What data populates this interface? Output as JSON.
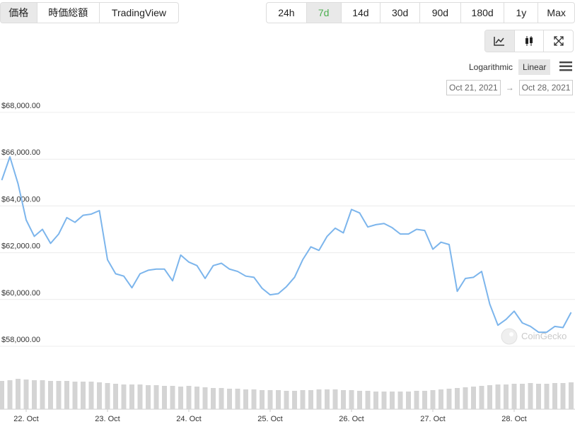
{
  "tabs": {
    "left": [
      "価格",
      "時価総額",
      "TradingView"
    ],
    "left_selected": 0,
    "right": [
      "24h",
      "7d",
      "14d",
      "30d",
      "90d",
      "180d",
      "1y",
      "Max"
    ],
    "right_selected": 1
  },
  "scale_options": [
    "Logarithmic",
    "Linear"
  ],
  "scale_selected": 1,
  "date_range": {
    "from": "Oct 21, 2021",
    "separator": "→",
    "to": "Oct 28, 2021"
  },
  "watermark": "CoinGecko",
  "chart_data": {
    "type": "line",
    "color": "#7cb5ec",
    "grid": true,
    "x": [
      21.7,
      21.8,
      21.9,
      22.0,
      22.1,
      22.2,
      22.3,
      22.4,
      22.5,
      22.6,
      22.7,
      22.8,
      22.9,
      23.0,
      23.1,
      23.2,
      23.3,
      23.4,
      23.5,
      23.6,
      23.7,
      23.8,
      23.9,
      24.0,
      24.1,
      24.2,
      24.3,
      24.4,
      24.5,
      24.6,
      24.7,
      24.8,
      24.9,
      25.0,
      25.1,
      25.2,
      25.3,
      25.4,
      25.5,
      25.6,
      25.7,
      25.8,
      25.9,
      26.0,
      26.1,
      26.2,
      26.3,
      26.4,
      26.5,
      26.6,
      26.7,
      26.8,
      26.9,
      27.0,
      27.1,
      27.2,
      27.3,
      27.4,
      27.5,
      27.6,
      27.7,
      27.8,
      27.9,
      28.0,
      28.1,
      28.2,
      28.3,
      28.4,
      28.5,
      28.6,
      28.7
    ],
    "series": [
      {
        "values": [
          65100,
          66100,
          64950,
          63400,
          62700,
          63000,
          62400,
          62800,
          63500,
          63300,
          63600,
          63650,
          63800,
          61700,
          61100,
          61000,
          60500,
          61100,
          61250,
          61300,
          61300,
          60800,
          61900,
          61600,
          61450,
          60900,
          61450,
          61550,
          61300,
          61200,
          61000,
          60950,
          60480,
          60200,
          60250,
          60550,
          60950,
          61700,
          62250,
          62100,
          62700,
          63050,
          62850,
          63850,
          63700,
          63100,
          63200,
          63250,
          63070,
          62800,
          62800,
          63000,
          62950,
          62150,
          62450,
          62350,
          60350,
          60900,
          60950,
          61200,
          59800,
          58900,
          59150,
          59500,
          59000,
          58850,
          58600,
          58600,
          58850,
          58800,
          59450
        ]
      }
    ],
    "volume": {
      "color": "#d4d4d4",
      "values": [
        40,
        41,
        43,
        42,
        41,
        41,
        40,
        40,
        40,
        39,
        39,
        39,
        38,
        37,
        36,
        35,
        35,
        35,
        34,
        34,
        33,
        33,
        32,
        33,
        32,
        31,
        30,
        30,
        29,
        29,
        28,
        28,
        27,
        27,
        27,
        26,
        26,
        27,
        27,
        28,
        28,
        28,
        27,
        27,
        26,
        26,
        25,
        25,
        25,
        25,
        25,
        26,
        26,
        27,
        28,
        29,
        30,
        31,
        32,
        33,
        34,
        35,
        35,
        36,
        36,
        37,
        36,
        36,
        37,
        37,
        38
      ]
    },
    "xlim": [
      21.7,
      28.7
    ],
    "xticks": [
      {
        "value": 22,
        "label": "22. Oct"
      },
      {
        "value": 23,
        "label": "23. Oct"
      },
      {
        "value": 24,
        "label": "24. Oct"
      },
      {
        "value": 25,
        "label": "25. Oct"
      },
      {
        "value": 26,
        "label": "26. Oct"
      },
      {
        "value": 27,
        "label": "27. Oct"
      },
      {
        "value": 28,
        "label": "28. Oct"
      }
    ],
    "ylim": [
      57800,
      68300
    ],
    "yticks": [
      {
        "value": 58000,
        "label": "$58,000.00"
      },
      {
        "value": 60000,
        "label": "$60,000.00"
      },
      {
        "value": 62000,
        "label": "$62,000.00"
      },
      {
        "value": 64000,
        "label": "$64,000.00"
      },
      {
        "value": 66000,
        "label": "$66,000.00"
      },
      {
        "value": 68000,
        "label": "$68,000.00"
      }
    ]
  }
}
